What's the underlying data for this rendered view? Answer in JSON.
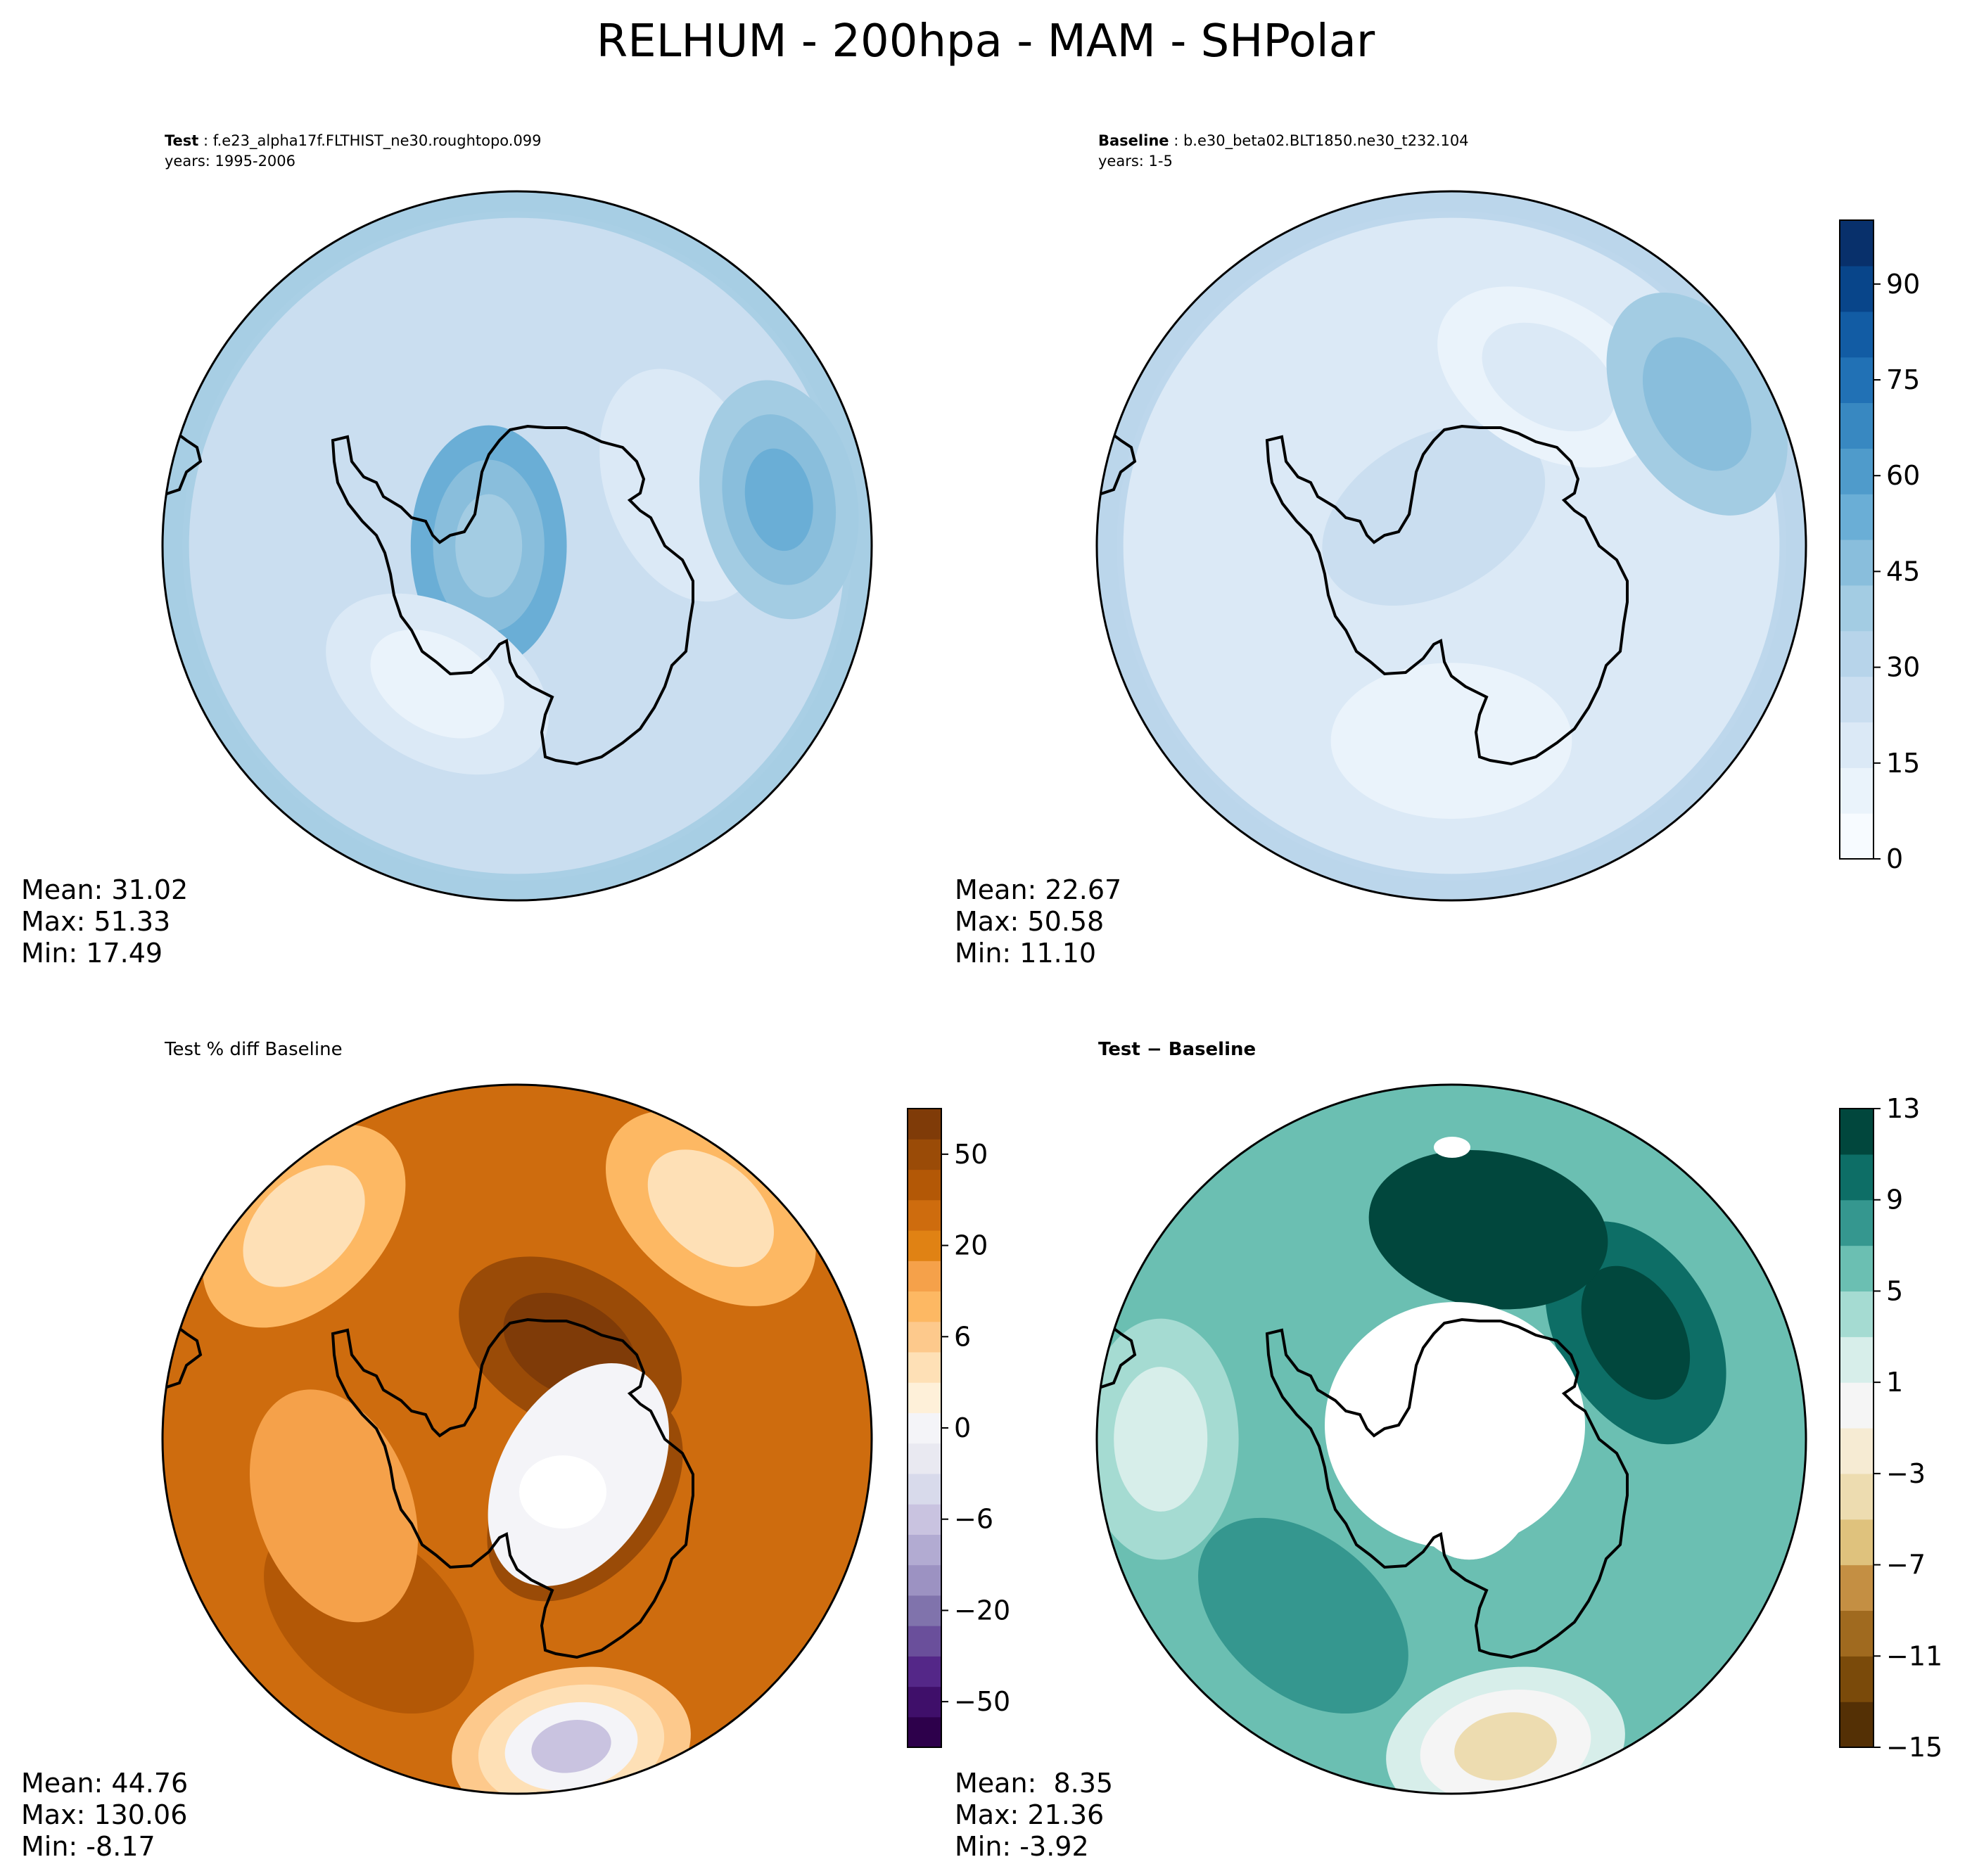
{
  "figure_title": "RELHUM - 200hpa - MAM - SHPolar",
  "colors": {
    "sea_blues": [
      "#f7fbff",
      "#eaf3fb",
      "#dbe9f6",
      "#cadef0",
      "#b7d4ea",
      "#a3cce3",
      "#89bedc",
      "#6aaed6",
      "#4f9bcb",
      "#3888c1",
      "#2171b5",
      "#125ca4",
      "#08458a",
      "#08306b"
    ],
    "diff_teal": [
      "#543005",
      "#7a4a0a",
      "#a06a1f",
      "#c48f43",
      "#dfc27d",
      "#eddcb0",
      "#f6ebd3",
      "#f5f5f5",
      "#d7eeea",
      "#a5dbd2",
      "#6bbfb2",
      "#35978f",
      "#0d6e66",
      "#01473d"
    ],
    "pct_puor": [
      "#2d004b",
      "#3f0f6a",
      "#542788",
      "#6a4f9b",
      "#8073ac",
      "#9c92c2",
      "#b2abd2",
      "#c9c3e0",
      "#d8daeb",
      "#e9e9f1",
      "#f4f4f8",
      "#fef0d9",
      "#fee0b6",
      "#fdc98c",
      "#fdb863",
      "#f5a14a",
      "#e08214",
      "#ce6c0e",
      "#b35806",
      "#9a4b07",
      "#7f3b08"
    ]
  },
  "chart_data": [
    {
      "type": "heatmap",
      "projection": "south-polar-stereographic",
      "title_bold": "Test",
      "title_rest": ": f.e23_alpha17f.FLTHIST_ne30.roughtopo.099",
      "subtitle": "years: 1995-2006",
      "field_base": 3,
      "field_gradient": 2,
      "field_blobs": [
        {
          "r": 0.08,
          "ang": 180,
          "cells": [
            7,
            6,
            5
          ]
        },
        {
          "r": 0.5,
          "ang": 20,
          "cells": [
            2,
            2
          ]
        },
        {
          "r": 0.75,
          "ang": 10,
          "cells": [
            5,
            6,
            7
          ]
        },
        {
          "r": 0.45,
          "ang": 240,
          "cells": [
            2,
            1
          ]
        }
      ],
      "stats": {
        "mean": "Mean: 31.02",
        "max": "Max: 51.33",
        "min": "Min: 17.49"
      }
    },
    {
      "type": "heatmap",
      "projection": "south-polar-stereographic",
      "title_bold": "Baseline",
      "title_rest": ": b.e30_beta02.BLT1850.ne30_t232.104",
      "subtitle": "years: 1-5",
      "field_base": 2,
      "field_gradient": 2,
      "field_blobs": [
        {
          "r": 0.1,
          "ang": 120,
          "cells": [
            3,
            3
          ]
        },
        {
          "r": 0.55,
          "ang": 60,
          "cells": [
            1,
            2
          ]
        },
        {
          "r": 0.8,
          "ang": 30,
          "cells": [
            5,
            6
          ]
        },
        {
          "r": 0.55,
          "ang": 270,
          "cells": [
            1
          ]
        }
      ],
      "stats": {
        "mean": "Mean: 22.67",
        "max": "Max: 50.58",
        "min": "Min: 11.10"
      },
      "colorbar": {
        "ticks": [
          "90",
          "75",
          "60",
          "45",
          "30",
          "15",
          "0"
        ],
        "range": [
          0,
          100
        ]
      }
    },
    {
      "type": "heatmap",
      "projection": "south-polar-stereographic",
      "title": "Test % diff Baseline",
      "field_base": 17,
      "field_gradient": 0,
      "field_blobs": [
        {
          "r": 0.3,
          "ang": 60,
          "cells": [
            19,
            20
          ]
        },
        {
          "r": 0.25,
          "ang": 320,
          "cells": [
            19,
            18,
            20
          ]
        },
        {
          "r": 0.2,
          "ang": 330,
          "cells": [
            10
          ]
        },
        {
          "r": 0.65,
          "ang": 230,
          "cells": [
            18
          ]
        },
        {
          "r": 0.55,
          "ang": 200,
          "cells": [
            15
          ]
        },
        {
          "r": 0.88,
          "ang": 280,
          "cells": [
            13,
            12,
            10,
            7
          ]
        },
        {
          "r": 0.85,
          "ang": 50,
          "cells": [
            14,
            12
          ]
        },
        {
          "r": 0.85,
          "ang": 135,
          "cells": [
            14,
            12
          ]
        }
      ],
      "stats": {
        "mean": "Mean: 44.76",
        "max": "Max: 130.06",
        "min": "Min: -8.17"
      },
      "colorbar": {
        "ticks": [
          "50",
          "20",
          "6",
          "0",
          "−6",
          "−20",
          "−50"
        ],
        "range": [
          -80,
          80
        ]
      }
    },
    {
      "type": "heatmap",
      "projection": "south-polar-stereographic",
      "title": "Test − Baseline",
      "field_base": 10,
      "field_gradient": 0,
      "field_blobs": [
        {
          "r": 0.05,
          "ang": 0,
          "cells": [
            12,
            13
          ]
        },
        {
          "r": 0.05,
          "ang": 0,
          "cells": [
            -1
          ]
        },
        {
          "r": 0.6,
          "ang": 30,
          "cells": [
            12,
            13
          ]
        },
        {
          "r": 0.6,
          "ang": 80,
          "cells": [
            13
          ]
        },
        {
          "r": 0.65,
          "ang": 230,
          "cells": [
            11
          ]
        },
        {
          "r": 0.88,
          "ang": 280,
          "cells": [
            8,
            7,
            5
          ]
        },
        {
          "r": 0.82,
          "ang": 180,
          "cells": [
            9,
            8
          ]
        }
      ],
      "stats": {
        "mean": "Mean:  8.35",
        "max": "Max: 21.36",
        "min": "Min: -3.92"
      },
      "colorbar": {
        "ticks": [
          "13",
          "9",
          "5",
          "1",
          "−3",
          "−7",
          "−11",
          "−15"
        ],
        "range": [
          -15,
          13
        ]
      }
    }
  ]
}
